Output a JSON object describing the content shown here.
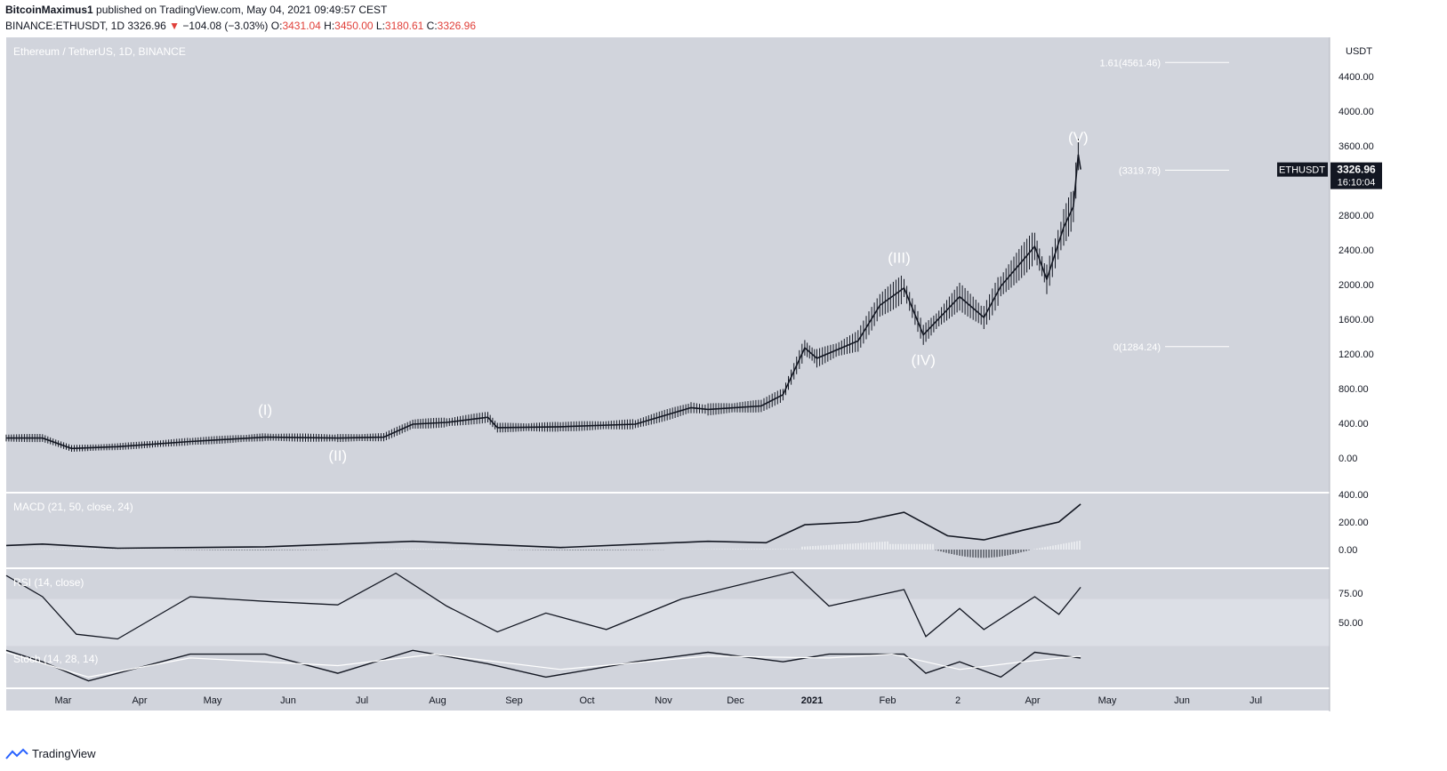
{
  "header": {
    "author": "BitcoinMaximus1",
    "published": "published on TradingView.com, May 04, 2021 09:49:57 CEST",
    "symbol": "BINANCE:ETHUSDT, 1D",
    "last": "3326.96",
    "change_arrow": "▼",
    "change": "−104.08 (−3.03%)",
    "o_label": "O:",
    "o": "3431.04",
    "h_label": "H:",
    "h": "3450.00",
    "l_label": "L:",
    "l": "3180.61",
    "c_label": "C:",
    "c": "3326.96"
  },
  "footer": {
    "brand": "TradingView",
    "icon": "tradingview-logo-icon"
  },
  "colors": {
    "panel_bg": "#d1d4dc",
    "price_line": "#131722",
    "stoch_d": "#ffffff",
    "rsi_band": "#dcdfe6",
    "label_white": "#ffffff",
    "price_badge_bg": "#131722"
  },
  "chart_data": {
    "type": "candlestick",
    "title": "Ethereum / TetherUS, 1D, BINANCE",
    "currency": "USDT",
    "y_ticks": [
      "4400.00",
      "4000.00",
      "3600.00",
      "3200.00",
      "2800.00",
      "2400.00",
      "2000.00",
      "1600.00",
      "1200.00",
      "800.00",
      "400.00",
      "0.00"
    ],
    "x_ticks": [
      "Mar",
      "Apr",
      "May",
      "Jun",
      "Jul",
      "Aug",
      "Sep",
      "Oct",
      "Nov",
      "Dec",
      "2021",
      "Feb",
      "2",
      "Apr",
      "May",
      "Jun",
      "Jul"
    ],
    "price_series": {
      "name": "ETHUSDT",
      "x": [
        "2020-02-15",
        "2020-03-01",
        "2020-03-13",
        "2020-04-01",
        "2020-05-01",
        "2020-06-01",
        "2020-07-01",
        "2020-07-20",
        "2020-08-01",
        "2020-08-15",
        "2020-09-01",
        "2020-09-05",
        "2020-10-01",
        "2020-11-01",
        "2020-11-24",
        "2020-12-01",
        "2020-12-23",
        "2021-01-01",
        "2021-01-10",
        "2021-01-15",
        "2021-02-01",
        "2021-02-10",
        "2021-02-20",
        "2021-02-28",
        "2021-03-15",
        "2021-03-25",
        "2021-04-01",
        "2021-04-15",
        "2021-04-20",
        "2021-04-27",
        "2021-05-01",
        "2021-05-03",
        "2021-05-04"
      ],
      "y": [
        230,
        230,
        110,
        130,
        190,
        240,
        230,
        240,
        390,
        410,
        470,
        350,
        360,
        390,
        580,
        560,
        600,
        730,
        1270,
        1150,
        1350,
        1760,
        1960,
        1420,
        1860,
        1620,
        1980,
        2440,
        2060,
        2660,
        2900,
        3500,
        3326.96
      ]
    },
    "fib_levels": [
      {
        "label": "1.61(4561.46)",
        "value": 4561.46
      },
      {
        "label": "(3319.78)",
        "value": 3319.78
      },
      {
        "label": "0(1284.24)",
        "value": 1284.24
      }
    ],
    "wave_labels": [
      {
        "text": "(I)",
        "x": "2020-06-01",
        "y": 500
      },
      {
        "text": "(II)",
        "x": "2020-07-01",
        "y": -30
      },
      {
        "text": "(III)",
        "x": "2021-02-18",
        "y": 2250
      },
      {
        "text": "(IV)",
        "x": "2021-02-28",
        "y": 1070
      },
      {
        "text": "(V)",
        "x": "2021-05-03",
        "y": 3640
      }
    ],
    "price_badge": {
      "symbol": "ETHUSDT",
      "value": "3326.96",
      "countdown": "16:10:04"
    },
    "macd": {
      "name": "MACD (21, 50, close, 24)",
      "y_ticks": [
        "400.00",
        "200.00",
        "0.00"
      ],
      "line_x": [
        "2020-02-15",
        "2020-03-01",
        "2020-04-01",
        "2020-06-01",
        "2020-08-01",
        "2020-10-01",
        "2020-12-01",
        "2020-12-25",
        "2021-01-10",
        "2021-02-01",
        "2021-02-20",
        "2021-03-10",
        "2021-03-25",
        "2021-04-10",
        "2021-04-25",
        "2021-05-04"
      ],
      "line_y": [
        30,
        40,
        10,
        20,
        60,
        15,
        60,
        50,
        180,
        200,
        270,
        100,
        70,
        140,
        200,
        330
      ]
    },
    "rsi": {
      "name": "RSI (14, close)",
      "y_ticks": [
        "75.00",
        "50.00"
      ],
      "x": [
        "2020-02-15",
        "2020-03-01",
        "2020-03-15",
        "2020-04-01",
        "2020-05-01",
        "2020-06-01",
        "2020-07-01",
        "2020-07-25",
        "2020-08-15",
        "2020-09-05",
        "2020-09-25",
        "2020-10-20",
        "2020-11-20",
        "2021-01-05",
        "2021-01-20",
        "2021-02-20",
        "2021-03-01",
        "2021-03-15",
        "2021-03-25",
        "2021-04-15",
        "2021-04-25",
        "2021-05-04"
      ],
      "y": [
        90,
        72,
        40,
        36,
        72,
        68,
        65,
        92,
        64,
        42,
        58,
        44,
        70,
        93,
        64,
        78,
        38,
        62,
        44,
        72,
        57,
        80
      ]
    },
    "stoch": {
      "name": "Stoch (14, 28, 14)",
      "k_x": [
        "2020-02-15",
        "2020-03-01",
        "2020-03-20",
        "2020-05-01",
        "2020-06-01",
        "2020-07-01",
        "2020-08-01",
        "2020-09-01",
        "2020-09-25",
        "2020-11-01",
        "2020-12-01",
        "2021-01-01",
        "2021-01-20",
        "2021-02-20",
        "2021-03-01",
        "2021-03-15",
        "2021-04-01",
        "2021-04-15",
        "2021-05-04"
      ],
      "k_y": [
        90,
        60,
        10,
        80,
        80,
        30,
        90,
        55,
        20,
        60,
        85,
        60,
        80,
        80,
        30,
        60,
        20,
        85,
        70
      ],
      "d_x": [
        "2020-02-15",
        "2020-03-20",
        "2020-05-01",
        "2020-07-01",
        "2020-08-10",
        "2020-10-01",
        "2020-12-01",
        "2021-01-20",
        "2021-02-15",
        "2021-03-15",
        "2021-04-10",
        "2021-05-04"
      ],
      "d_y": [
        85,
        20,
        70,
        50,
        80,
        40,
        75,
        70,
        80,
        40,
        60,
        75
      ]
    },
    "grid": false,
    "legend": "none"
  }
}
